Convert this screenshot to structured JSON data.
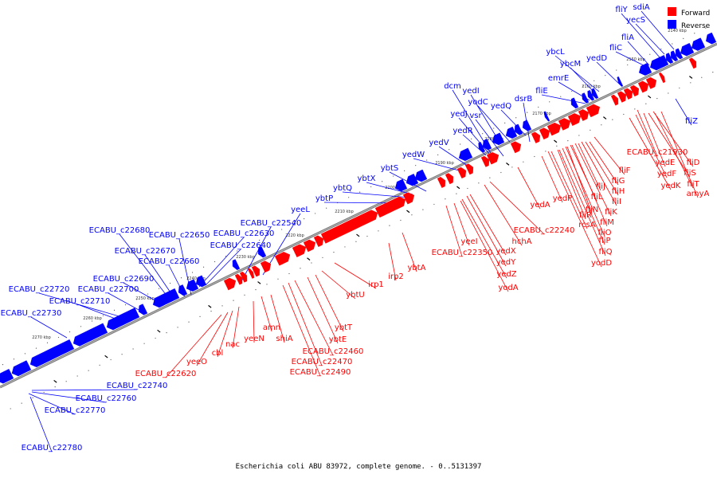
{
  "footer": "Escherichia coli ABU 83972, complete genome. - 0..5131397",
  "legend": [
    {
      "label": "Forward",
      "color": "#ff0000"
    },
    {
      "label": "Reverse",
      "color": "#0000ff"
    }
  ],
  "colors": {
    "forward": "#ff0000",
    "reverse": "#0000ff",
    "backbone": "#777777"
  },
  "ticks": [
    "2140 kbp",
    "2150 kbp",
    "2160 kbp",
    "2170 kbp",
    "2180 kbp",
    "2190 kbp",
    "2200 kbp",
    "2210 kbp",
    "2220 kbp",
    "2230 kbp",
    "2240 kbp",
    "2250 kbp",
    "2260 kbp",
    "2270 kbp"
  ],
  "genes_reverse": [
    "fliY",
    "sdiA",
    "yecS",
    "fliA",
    "fliC",
    "ybcL",
    "ybcM",
    "yedD",
    "emrE",
    "fliE",
    "dcm",
    "yedI",
    "yodC",
    "yedQ",
    "dsrB",
    "yedJ",
    "vsr",
    "yedR",
    "yedV",
    "yedW",
    "ybtS",
    "ybtX",
    "ybtQ",
    "ybtP",
    "yeeL",
    "ECABU_c22540",
    "ECABU_c22630",
    "ECABU_c22640",
    "ECABU_c22650",
    "ECABU_c22680",
    "ECABU_c22670",
    "ECABU_c22660",
    "ECABU_c22690",
    "ECABU_c22720",
    "ECABU_c22700",
    "ECABU_c22710",
    "ECABU_c22730",
    "ECABU_c22740",
    "ECABU_c22760",
    "ECABU_c22770",
    "ECABU_c22780",
    "fliZ"
  ],
  "genes_forward": [
    "ECABU_c21930",
    "fliD",
    "yedE",
    "fliS",
    "yedF",
    "fliT",
    "yedK",
    "amyA",
    "fliF",
    "fliG",
    "fliJ",
    "fliH",
    "fliI",
    "fliK",
    "fliL",
    "fliM",
    "fliN",
    "fliO",
    "fliR",
    "fliP",
    "rcsA",
    "fliQ",
    "yodD",
    "yedP",
    "yedA",
    "ECABU_c22240",
    "hchA",
    "yedX",
    "yedY",
    "yedZ",
    "yodA",
    "yeeI",
    "ECABU_c22350",
    "ybtA",
    "irp2",
    "irp1",
    "ybtU",
    "ybtT",
    "ybtE",
    "ECABU_c22460",
    "ECABU_c22470",
    "ECABU_c22490",
    "shiA",
    "amn",
    "yeeN",
    "nac",
    "cbl",
    "yeeO",
    "ECABU_c22620"
  ]
}
